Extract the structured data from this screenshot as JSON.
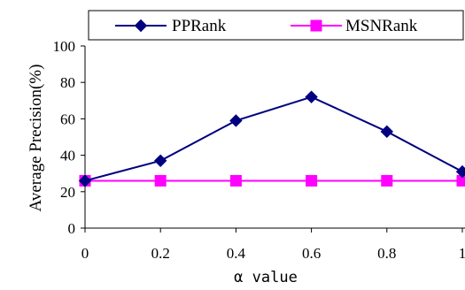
{
  "chart_data": {
    "type": "line",
    "x": [
      0,
      0.2,
      0.4,
      0.6,
      0.8,
      1
    ],
    "x_tick_labels": [
      "0",
      "0.2",
      "0.4",
      "0.6",
      "0.8",
      "1"
    ],
    "xlabel": "α value",
    "ylabel": "Average Precision(%)",
    "ylim": [
      0,
      100
    ],
    "y_ticks": [
      0,
      20,
      40,
      60,
      80,
      100
    ],
    "grid": false,
    "legend_position": "top",
    "series": [
      {
        "name": "PPRank",
        "values": [
          26,
          37,
          59,
          72,
          53,
          31
        ],
        "color": "#000080",
        "marker": "diamond"
      },
      {
        "name": "MSNRank",
        "values": [
          26,
          26,
          26,
          26,
          26,
          26
        ],
        "color": "#ff00ff",
        "marker": "square"
      }
    ]
  }
}
